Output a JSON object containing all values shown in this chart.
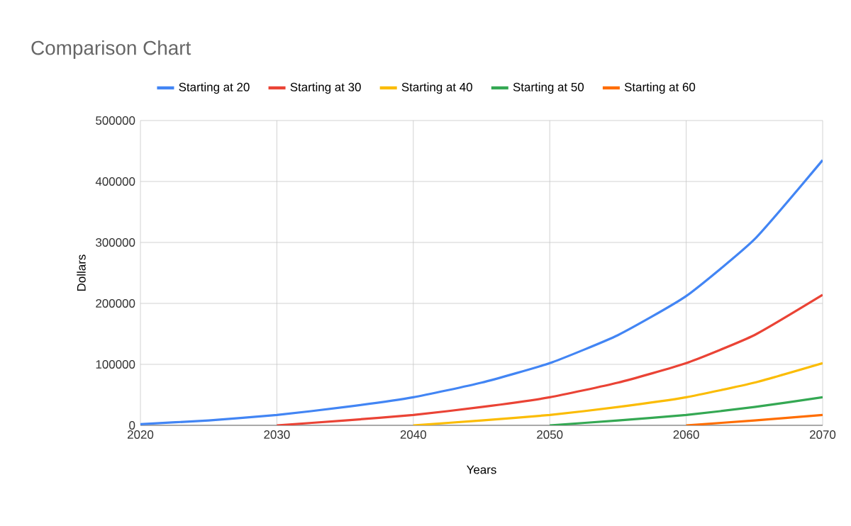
{
  "chart_data": {
    "type": "line",
    "title": "Comparison Chart",
    "xlabel": "Years",
    "ylabel": "Dollars",
    "series": [
      {
        "name": "Starting at 20",
        "color": "#4285f4",
        "x": [
          2020,
          2025,
          2030,
          2035,
          2040,
          2045,
          2050,
          2055,
          2060,
          2065,
          2070
        ],
        "values": [
          2000,
          8000,
          17000,
          30000,
          46000,
          70000,
          102000,
          148000,
          212000,
          305000,
          435000
        ]
      },
      {
        "name": "Starting at 30",
        "color": "#ea4335",
        "x": [
          2030,
          2035,
          2040,
          2045,
          2050,
          2055,
          2060,
          2065,
          2070
        ],
        "values": [
          0,
          8000,
          17000,
          30000,
          46000,
          70000,
          102000,
          148000,
          214000
        ]
      },
      {
        "name": "Starting at 40",
        "color": "#fbbc04",
        "x": [
          2040,
          2045,
          2050,
          2055,
          2060,
          2065,
          2070
        ],
        "values": [
          0,
          8000,
          17000,
          30000,
          46000,
          70000,
          102000
        ]
      },
      {
        "name": "Starting at 50",
        "color": "#34a853",
        "x": [
          2050,
          2055,
          2060,
          2065,
          2070
        ],
        "values": [
          0,
          8000,
          17000,
          30000,
          46000
        ]
      },
      {
        "name": "Starting at 60",
        "color": "#ff6d01",
        "x": [
          2060,
          2065,
          2070
        ],
        "values": [
          0,
          8000,
          17000
        ]
      }
    ],
    "xlim": [
      2020,
      2070
    ],
    "xticks": [
      2020,
      2030,
      2040,
      2050,
      2060,
      2070
    ],
    "ylim": [
      0,
      500000
    ],
    "yticks": [
      0,
      100000,
      200000,
      300000,
      400000,
      500000
    ],
    "grid": true,
    "legend": "top",
    "marker": "none",
    "line_style": "solid"
  }
}
